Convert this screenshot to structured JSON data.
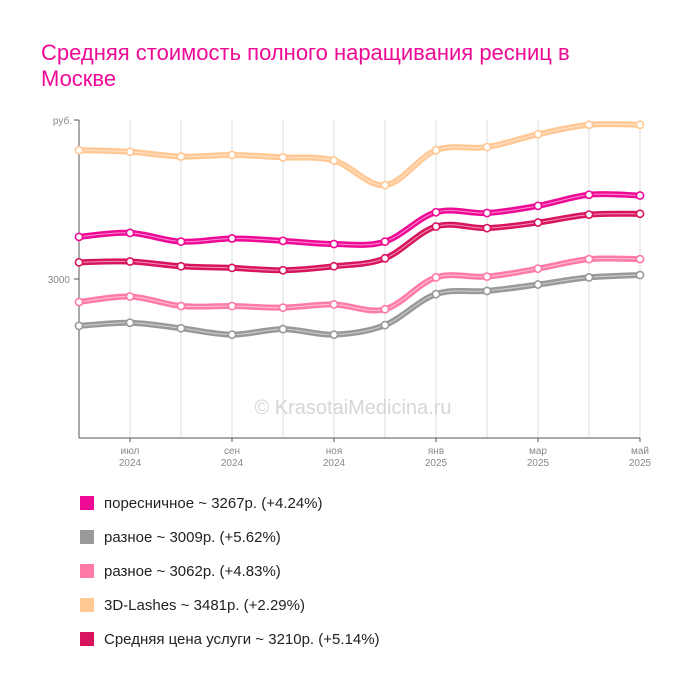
{
  "colors": {
    "title": "#ee0a95",
    "grid": "#dddddd",
    "axis": "#555555",
    "tick_text": "#888888",
    "watermark": "#d6d6d6"
  },
  "title": "Средняя стоимость полного наращивания ресниц в Москве",
  "watermark": "© KrasotaiMedicina.ru",
  "chart_data": {
    "type": "line",
    "title": "Средняя стоимость полного наращивания ресниц в Москве",
    "x": [
      "2024-06",
      "2024-07",
      "2024-08",
      "2024-09",
      "2024-10",
      "2024-11",
      "2024-12",
      "2025-01",
      "2025-02",
      "2025-03",
      "2025-04",
      "2025-05"
    ],
    "x_tick_labels": [
      {
        "at": "2024-07",
        "month": "июл",
        "year": "2024"
      },
      {
        "at": "2024-09",
        "month": "сен",
        "year": "2024"
      },
      {
        "at": "2024-11",
        "month": "ноя",
        "year": "2024"
      },
      {
        "at": "2025-01",
        "month": "янв",
        "year": "2025"
      },
      {
        "at": "2025-03",
        "month": "мар",
        "year": "2025"
      },
      {
        "at": "2025-05",
        "month": "май",
        "year": "2025"
      }
    ],
    "y_ticks": [
      {
        "value": 3000,
        "label": "3000"
      }
    ],
    "y_unit_label": "руб.",
    "ylim": [
      2000,
      4000
    ],
    "grid": true,
    "legend_position": "bottom",
    "series": [
      {
        "name": "3D-Lashes",
        "color": "#ffc894",
        "legend_label": "3D-Lashes ~ 3481р. (+2.29%)",
        "values": [
          3810,
          3800,
          3770,
          3780,
          3765,
          3745,
          3590,
          3810,
          3830,
          3910,
          3970,
          3970
        ]
      },
      {
        "name": "поресничное",
        "color": "#ee0a95",
        "legend_label": "поресничное ~ 3267р. (+4.24%)",
        "values": [
          3265,
          3290,
          3235,
          3255,
          3240,
          3220,
          3235,
          3420,
          3415,
          3460,
          3530,
          3525
        ]
      },
      {
        "name": "Средняя цена услуги",
        "color": "#d9145e",
        "legend_label": "Средняя цена услуги ~ 3210р. (+5.14%)",
        "values": [
          3105,
          3110,
          3080,
          3070,
          3055,
          3080,
          3130,
          3330,
          3320,
          3355,
          3405,
          3410
        ]
      },
      {
        "name": "разное",
        "color": "#ff7aa8",
        "legend_label": "разное ~ 3062р. (+4.83%)",
        "values": [
          2855,
          2890,
          2830,
          2830,
          2820,
          2840,
          2810,
          3010,
          3015,
          3065,
          3125,
          3125
        ]
      },
      {
        "name": "разное",
        "color": "#999999",
        "legend_label": "разное ~ 3009р. (+5.62%)",
        "values": [
          2705,
          2725,
          2690,
          2650,
          2685,
          2650,
          2710,
          2905,
          2925,
          2965,
          3010,
          3025
        ]
      }
    ]
  },
  "legend_items": [
    {
      "label": "поресничное ~ 3267р. (+4.24%)",
      "color": "#ee0a95"
    },
    {
      "label": "разное ~ 3009р. (+5.62%)",
      "color": "#999999"
    },
    {
      "label": "разное ~ 3062р. (+4.83%)",
      "color": "#ff7aa8"
    },
    {
      "label": "3D-Lashes ~ 3481р. (+2.29%)",
      "color": "#ffc894"
    },
    {
      "label": "Средняя цена услуги ~ 3210р. (+5.14%)",
      "color": "#d9145e"
    }
  ]
}
